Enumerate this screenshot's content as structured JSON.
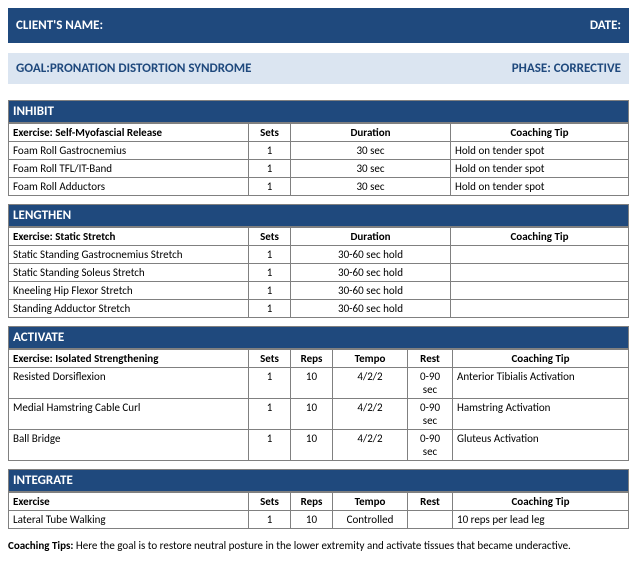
{
  "colors": {
    "bar_bg": "#1f497d",
    "bar_fg": "#ffffff",
    "goal_bg": "#dbe5f1",
    "goal_fg": "#1f497d",
    "border": "#808080"
  },
  "header": {
    "client_label": "CLIENT'S NAME:",
    "date_label": "DATE:"
  },
  "goalbar": {
    "goal": "GOAL:PRONATION DISTORTION SYNDROME",
    "phase": "PHASE: CORRECTIVE"
  },
  "section_titles": {
    "inhibit": "INHIBIT",
    "lengthen": "LENGTHEN",
    "activate": "ACTIVATE",
    "integrate": "INTEGRATE"
  },
  "inhibit": {
    "cols": {
      "ex": "Exercise: Self-Myofascial Release",
      "sets": "Sets",
      "dur": "Duration",
      "tip": "Coaching Tip"
    },
    "rows": [
      {
        "ex": "Foam Roll Gastrocnemius",
        "sets": "1",
        "dur": "30 sec",
        "tip": "Hold on tender spot"
      },
      {
        "ex": "Foam Roll TFL/IT-Band",
        "sets": "1",
        "dur": "30 sec",
        "tip": "Hold on tender spot"
      },
      {
        "ex": "Foam Roll Adductors",
        "sets": "1",
        "dur": "30 sec",
        "tip": "Hold on tender spot"
      }
    ]
  },
  "lengthen": {
    "cols": {
      "ex": "Exercise: Static Stretch",
      "sets": "Sets",
      "dur": "Duration",
      "tip": "Coaching Tip"
    },
    "rows": [
      {
        "ex": "Static Standing Gastrocnemius Stretch",
        "sets": "1",
        "dur": "30-60 sec hold",
        "tip": ""
      },
      {
        "ex": "Static Standing Soleus Stretch",
        "sets": "1",
        "dur": "30-60 sec hold",
        "tip": ""
      },
      {
        "ex": "Kneeling Hip Flexor Stretch",
        "sets": "1",
        "dur": "30-60 sec hold",
        "tip": ""
      },
      {
        "ex": "Standing Adductor Stretch",
        "sets": "1",
        "dur": "30-60 sec hold",
        "tip": ""
      }
    ]
  },
  "activate": {
    "cols": {
      "ex": "Exercise: Isolated Strengthening",
      "sets": "Sets",
      "reps": "Reps",
      "tempo": "Tempo",
      "rest": "Rest",
      "tip": "Coaching Tip"
    },
    "rows": [
      {
        "ex": "Resisted Dorsiflexion",
        "sets": "1",
        "reps": "10",
        "tempo": "4/2/2",
        "rest": "0-90 sec",
        "tip": "Anterior Tibialis Activation"
      },
      {
        "ex": "Medial Hamstring Cable Curl",
        "sets": "1",
        "reps": "10",
        "tempo": "4/2/2",
        "rest": "0-90 sec",
        "tip": "Hamstring Activation"
      },
      {
        "ex": "Ball Bridge",
        "sets": "1",
        "reps": "10",
        "tempo": "4/2/2",
        "rest": "0-90 sec",
        "tip": "Gluteus Activation"
      }
    ]
  },
  "integrate": {
    "cols": {
      "ex": "Exercise",
      "sets": "Sets",
      "reps": "Reps",
      "tempo": "Tempo",
      "rest": "Rest",
      "tip": "Coaching Tip"
    },
    "rows": [
      {
        "ex": "Lateral Tube Walking",
        "sets": "1",
        "reps": "10",
        "tempo": "Controlled",
        "rest": "",
        "tip": "10 reps per lead leg"
      }
    ]
  },
  "tips": {
    "label": "Coaching Tips:",
    "text": " Here the goal is to restore neutral posture in the lower extremity and activate tissues that became underactive."
  }
}
